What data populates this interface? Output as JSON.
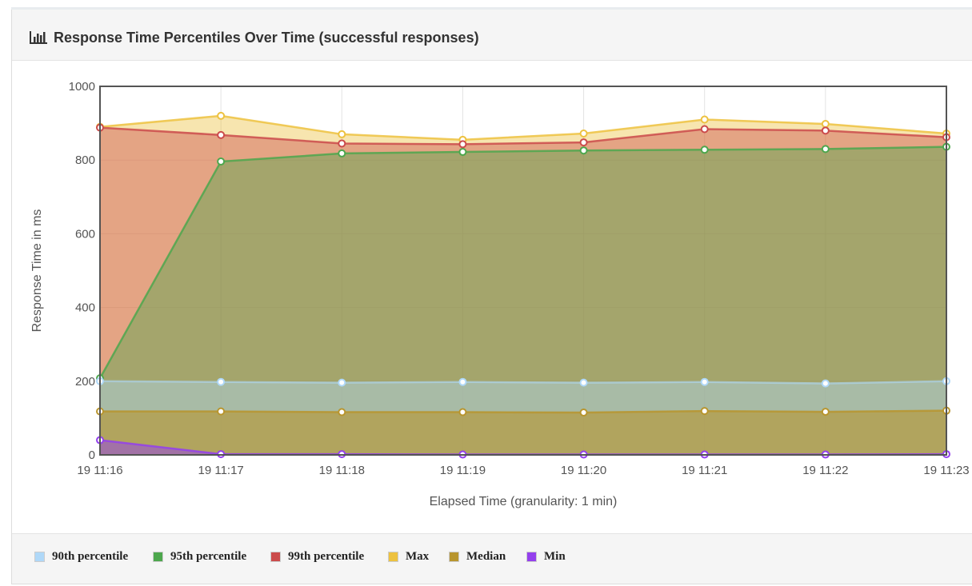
{
  "panel": {
    "title": "Response Time Percentiles Over Time (successful responses)",
    "title_icon": "bar-chart-icon"
  },
  "chart_data": {
    "type": "area",
    "title": "Response Time Percentiles Over Time (successful responses)",
    "xlabel": "Elapsed Time (granularity: 1 min)",
    "ylabel": "Response Time in ms",
    "categories": [
      "19 11:16",
      "19 11:17",
      "19 11:18",
      "19 11:19",
      "19 11:20",
      "19 11:21",
      "19 11:22",
      "19 11:23"
    ],
    "ylim": [
      0,
      1000
    ],
    "yticks": [
      0,
      200,
      400,
      600,
      800,
      1000
    ],
    "grid": true,
    "legend_position": "bottom",
    "series": [
      {
        "name": "Max",
        "color": "#edc240",
        "values": [
          890,
          920,
          870,
          855,
          872,
          910,
          898,
          872
        ]
      },
      {
        "name": "99th percentile",
        "color": "#cb4b4b",
        "values": [
          888,
          868,
          845,
          843,
          848,
          884,
          880,
          862
        ]
      },
      {
        "name": "95th percentile",
        "color": "#4da74d",
        "values": [
          208,
          796,
          818,
          822,
          826,
          828,
          830,
          836
        ]
      },
      {
        "name": "90th percentile",
        "color": "#afd8f8",
        "values": [
          200,
          198,
          196,
          198,
          196,
          198,
          194,
          200
        ]
      },
      {
        "name": "Median",
        "color": "#b8952e",
        "values": [
          118,
          118,
          116,
          116,
          115,
          119,
          117,
          120
        ]
      },
      {
        "name": "Min",
        "color": "#9440ed",
        "values": [
          40,
          2,
          2,
          1,
          1,
          1,
          1,
          2
        ]
      }
    ]
  },
  "legend": [
    {
      "label": "90th percentile",
      "color": "#afd8f8"
    },
    {
      "label": "95th percentile",
      "color": "#4da74d"
    },
    {
      "label": "99th percentile",
      "color": "#cb4b4b"
    },
    {
      "label": "Max",
      "color": "#edc240"
    },
    {
      "label": "Median",
      "color": "#b8952e"
    },
    {
      "label": "Min",
      "color": "#9440ed"
    }
  ]
}
